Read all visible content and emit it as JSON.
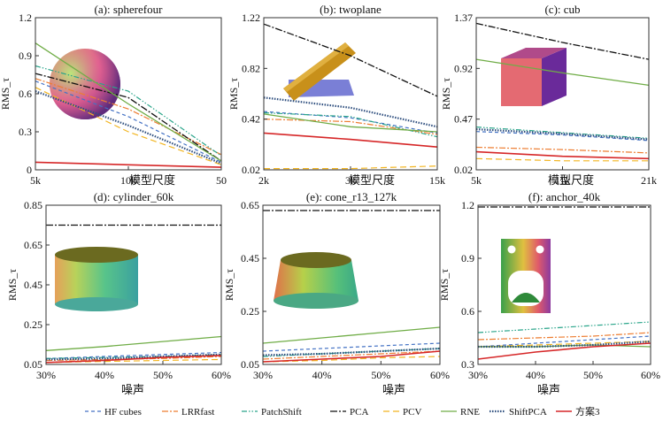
{
  "figure": {
    "colors": {
      "HF cubes": "#4472c4",
      "LRRfast": "#ed7d31",
      "PatchShift": "#2aa58a",
      "PCA": "#111111",
      "PCV": "#f2b521",
      "RNE": "#70ad47",
      "ShiftPCA": "#2f4f7f",
      "方案3": "#d62728"
    },
    "legend": [
      "HF cubes",
      "LRRfast",
      "PatchShift",
      "PCA",
      "PCV",
      "RNE",
      "ShiftPCA",
      "方案3"
    ]
  },
  "chart_data": [
    {
      "id": "a",
      "type": "line",
      "title": "(a): spherefour",
      "ylabel": "RMS_τ",
      "xlabel": "模型尺度",
      "x": [
        0,
        1,
        2
      ],
      "xticks": [
        0,
        1,
        2
      ],
      "xticklabels": [
        "5k",
        "10k",
        "50"
      ],
      "xlim": [
        0,
        2
      ],
      "ylim": [
        0,
        1.2
      ],
      "yticks": [
        0,
        0.3,
        0.6,
        0.9,
        1.2
      ],
      "yticklabels": [
        "0",
        "0.3",
        "0.6",
        "0.9",
        "1.2"
      ],
      "inset": "sphere",
      "series": [
        {
          "name": "HF cubes",
          "values": [
            0.7,
            0.42,
            0.06
          ]
        },
        {
          "name": "LRRfast",
          "values": [
            0.72,
            0.48,
            0.12
          ]
        },
        {
          "name": "PatchShift",
          "values": [
            0.82,
            0.62,
            0.11
          ]
        },
        {
          "name": "PCA",
          "values": [
            0.76,
            0.57,
            0.07
          ]
        },
        {
          "name": "PCV",
          "values": [
            0.65,
            0.3,
            0.04
          ]
        },
        {
          "name": "RNE",
          "values": [
            1.0,
            0.52,
            0.07
          ]
        },
        {
          "name": "ShiftPCA",
          "values": [
            0.62,
            0.35,
            0.05
          ]
        },
        {
          "name": "方案3",
          "values": [
            0.06,
            0.04,
            0.02
          ]
        }
      ]
    },
    {
      "id": "b",
      "type": "line",
      "title": "(b): twoplane",
      "ylabel": "RMS_τ",
      "xlabel": "模型尺度",
      "x": [
        0,
        1,
        2
      ],
      "xticks": [
        0,
        1,
        2
      ],
      "xticklabels": [
        "2k",
        "3k",
        "15k"
      ],
      "xlim": [
        0,
        2
      ],
      "ylim": [
        0.02,
        1.22
      ],
      "yticks": [
        0.02,
        0.42,
        0.82,
        1.22
      ],
      "yticklabels": [
        "0.02",
        "0.42",
        "0.82",
        "1.22"
      ],
      "inset": "twoplane",
      "series": [
        {
          "name": "HF cubes",
          "values": [
            0.48,
            0.43,
            0.31
          ]
        },
        {
          "name": "LRRfast",
          "values": [
            0.42,
            0.4,
            0.3
          ]
        },
        {
          "name": "PatchShift",
          "values": [
            0.47,
            0.44,
            0.28
          ]
        },
        {
          "name": "PCA",
          "values": [
            1.17,
            0.92,
            0.6
          ]
        },
        {
          "name": "PCV",
          "values": [
            0.03,
            0.03,
            0.05
          ]
        },
        {
          "name": "RNE",
          "values": [
            0.46,
            0.36,
            0.32
          ]
        },
        {
          "name": "ShiftPCA",
          "values": [
            0.59,
            0.51,
            0.36
          ]
        },
        {
          "name": "方案3",
          "values": [
            0.31,
            0.26,
            0.2
          ]
        }
      ]
    },
    {
      "id": "c",
      "type": "line",
      "title": "(c): cub",
      "ylabel": "RMS_τ",
      "xlabel": "模型尺度",
      "x": [
        0,
        1,
        2
      ],
      "xticks": [
        0,
        1,
        2
      ],
      "xticklabels": [
        "5k",
        "11k",
        "21k"
      ],
      "xlim": [
        0,
        2
      ],
      "ylim": [
        0.02,
        1.37
      ],
      "yticks": [
        0.02,
        0.47,
        0.92,
        1.37
      ],
      "yticklabels": [
        "0.02",
        "0.47",
        "0.92",
        "1.37"
      ],
      "inset": "cube",
      "series": [
        {
          "name": "HF cubes",
          "values": [
            0.36,
            0.33,
            0.28
          ]
        },
        {
          "name": "LRRfast",
          "values": [
            0.22,
            0.2,
            0.17
          ]
        },
        {
          "name": "PatchShift",
          "values": [
            0.4,
            0.35,
            0.3
          ]
        },
        {
          "name": "PCA",
          "values": [
            1.32,
            1.15,
            1.0
          ]
        },
        {
          "name": "PCV",
          "values": [
            0.12,
            0.1,
            0.1
          ]
        },
        {
          "name": "RNE",
          "values": [
            1.0,
            0.88,
            0.77
          ]
        },
        {
          "name": "ShiftPCA",
          "values": [
            0.38,
            0.34,
            0.29
          ]
        },
        {
          "name": "方案3",
          "values": [
            0.18,
            0.14,
            0.12
          ]
        }
      ]
    },
    {
      "id": "d",
      "type": "line",
      "title": "(d): cylinder_60k",
      "ylabel": "RMS_τ",
      "xlabel": "噪声",
      "x": [
        30,
        40,
        50,
        60
      ],
      "xticks": [
        30,
        40,
        50,
        60
      ],
      "xticklabels": [
        "30%",
        "40%",
        "50%",
        "60%"
      ],
      "xlim": [
        30,
        60
      ],
      "ylim": [
        0.05,
        0.85
      ],
      "yticks": [
        0.05,
        0.25,
        0.45,
        0.65,
        0.85
      ],
      "yticklabels": [
        "0.05",
        "0.25",
        "0.45",
        "0.65",
        "0.85"
      ],
      "inset": "cylinder",
      "series": [
        {
          "name": "HF cubes",
          "values": [
            0.08,
            0.09,
            0.1,
            0.11
          ]
        },
        {
          "name": "LRRfast",
          "values": [
            0.07,
            0.075,
            0.08,
            0.09
          ]
        },
        {
          "name": "PatchShift",
          "values": [
            0.08,
            0.085,
            0.09,
            0.1
          ]
        },
        {
          "name": "PCA",
          "values": [
            0.75,
            0.75,
            0.75,
            0.75
          ]
        },
        {
          "name": "PCV",
          "values": [
            0.06,
            0.065,
            0.07,
            0.075
          ]
        },
        {
          "name": "RNE",
          "values": [
            0.12,
            0.14,
            0.165,
            0.19
          ]
        },
        {
          "name": "ShiftPCA",
          "values": [
            0.075,
            0.08,
            0.09,
            0.1
          ]
        },
        {
          "name": "方案3",
          "values": [
            0.06,
            0.07,
            0.085,
            0.095
          ]
        }
      ]
    },
    {
      "id": "e",
      "type": "line",
      "title": "(e): cone_r13_127k",
      "ylabel": "RMS_τ",
      "xlabel": "噪声",
      "x": [
        30,
        40,
        50,
        60
      ],
      "xticks": [
        30,
        40,
        50,
        60
      ],
      "xticklabels": [
        "30%",
        "40%",
        "50%",
        "60%"
      ],
      "xlim": [
        30,
        60
      ],
      "ylim": [
        0.05,
        0.65
      ],
      "yticks": [
        0.05,
        0.25,
        0.45,
        0.65
      ],
      "yticklabels": [
        "0.05",
        "0.25",
        "0.45",
        "0.65"
      ],
      "inset": "cone",
      "series": [
        {
          "name": "HF cubes",
          "values": [
            0.1,
            0.11,
            0.12,
            0.13
          ]
        },
        {
          "name": "LRRfast",
          "values": [
            0.07,
            0.08,
            0.09,
            0.1
          ]
        },
        {
          "name": "PatchShift",
          "values": [
            0.08,
            0.09,
            0.1,
            0.11
          ]
        },
        {
          "name": "PCA",
          "values": [
            0.63,
            0.63,
            0.63,
            0.63
          ]
        },
        {
          "name": "PCV",
          "values": [
            0.06,
            0.065,
            0.075,
            0.08
          ]
        },
        {
          "name": "RNE",
          "values": [
            0.13,
            0.15,
            0.17,
            0.19
          ]
        },
        {
          "name": "ShiftPCA",
          "values": [
            0.085,
            0.09,
            0.1,
            0.11
          ]
        },
        {
          "name": "方案3",
          "values": [
            0.06,
            0.07,
            0.08,
            0.1
          ]
        }
      ]
    },
    {
      "id": "f",
      "type": "line",
      "title": "(f): anchor_40k",
      "ylabel": "RMS_τ",
      "xlabel": "噪声",
      "x": [
        30,
        40,
        50,
        60
      ],
      "xticks": [
        30,
        40,
        50,
        60
      ],
      "xticklabels": [
        "30%",
        "40%",
        "50%",
        "60%"
      ],
      "xlim": [
        30,
        60
      ],
      "ylim": [
        0.3,
        1.2
      ],
      "yticks": [
        0.3,
        0.6,
        0.9,
        1.2
      ],
      "yticklabels": [
        "0.3",
        "0.6",
        "0.9",
        "1.2"
      ],
      "inset": "anchor",
      "series": [
        {
          "name": "HF cubes",
          "values": [
            0.4,
            0.42,
            0.44,
            0.46
          ]
        },
        {
          "name": "LRRfast",
          "values": [
            0.44,
            0.45,
            0.46,
            0.48
          ]
        },
        {
          "name": "PatchShift",
          "values": [
            0.48,
            0.5,
            0.52,
            0.54
          ]
        },
        {
          "name": "PCA",
          "values": [
            1.19,
            1.19,
            1.19,
            1.19
          ]
        },
        {
          "name": "PCV",
          "values": [
            0.4,
            0.41,
            0.42,
            0.43
          ]
        },
        {
          "name": "RNE",
          "values": [
            0.4,
            0.4,
            0.41,
            0.4
          ]
        },
        {
          "name": "ShiftPCA",
          "values": [
            0.4,
            0.4,
            0.41,
            0.43
          ]
        },
        {
          "name": "方案3",
          "values": [
            0.33,
            0.37,
            0.4,
            0.42
          ]
        }
      ]
    }
  ]
}
